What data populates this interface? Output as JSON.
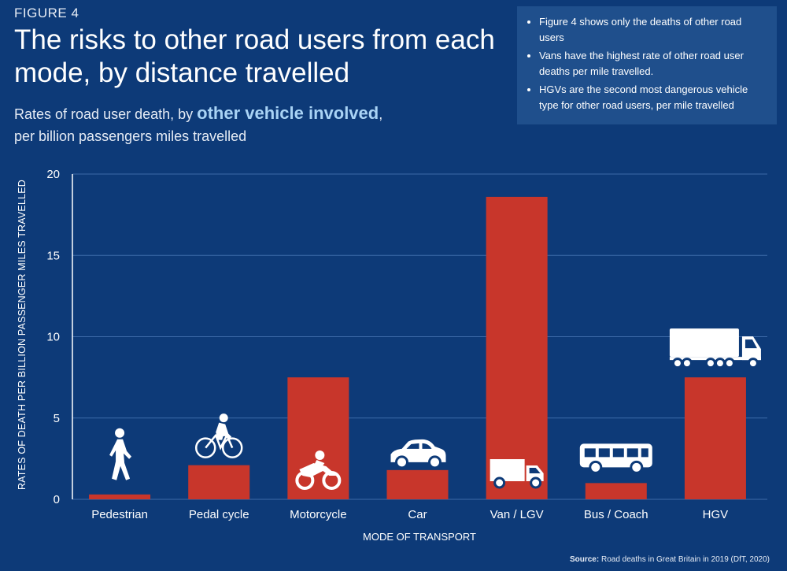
{
  "figure_label": "FIGURE 4",
  "title": "The risks to other road users from each mode, by distance travelled",
  "subtitle": {
    "prefix": "Rates of road user death, by ",
    "highlight": "other vehicle involved",
    "suffix": ",",
    "line2": "per billion passengers miles travelled"
  },
  "notes": [
    "Figure 4 shows only the deaths of other road users",
    "Vans have the highest rate of other road user deaths per mile travelled.",
    "HGVs are the second most dangerous vehicle type for other road users, per mile travelled"
  ],
  "source": {
    "label": "Source:",
    "text": "Road deaths in Great Britain in 2019 (DfT, 2020)"
  },
  "colors": {
    "background": "#0d3a78",
    "bar": "#c8362b",
    "grid": "#3d6aa8",
    "notes_box": "#1f4f8c",
    "highlight": "#a9d3f5"
  },
  "chart_data": {
    "type": "bar",
    "categories": [
      "Pedestrian",
      "Pedal cycle",
      "Motorcycle",
      "Car",
      "Van / LGV",
      "Bus / Coach",
      "HGV"
    ],
    "values": [
      0.3,
      2.1,
      7.5,
      1.8,
      18.6,
      1.0,
      7.5
    ],
    "icons": [
      "pedestrian-icon",
      "cyclist-icon",
      "motorcycle-icon",
      "car-icon",
      "van-icon",
      "bus-icon",
      "truck-icon"
    ],
    "xlabel": "MODE OF TRANSPORT",
    "ylabel": "RATES OF DEATH PER BILLION PASSENGER MILES TRAVELLED",
    "ylim": [
      0,
      20
    ],
    "yticks": [
      0,
      5,
      10,
      15,
      20
    ],
    "grid": true
  }
}
